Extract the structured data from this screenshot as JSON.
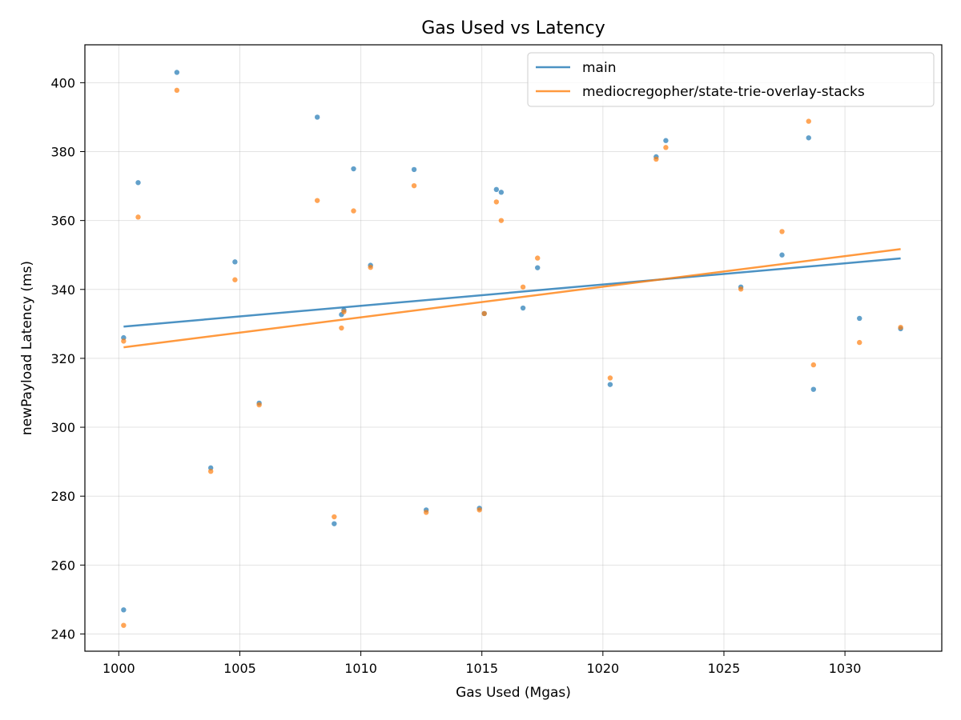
{
  "chart_data": {
    "type": "scatter",
    "title": "Gas Used vs Latency",
    "xlabel": "Gas Used (Mgas)",
    "ylabel": "newPayload Latency (ms)",
    "xlim": [
      998.6,
      1034
    ],
    "ylim": [
      235,
      411
    ],
    "xticks": [
      1000,
      1005,
      1010,
      1015,
      1020,
      1025,
      1030
    ],
    "yticks": [
      240,
      260,
      280,
      300,
      320,
      340,
      360,
      380,
      400
    ],
    "grid": true,
    "legend_position": "top-right",
    "series": [
      {
        "name": "main",
        "color": "#1f77b4",
        "points": [
          [
            1000.2,
            247.0
          ],
          [
            1000.2,
            326.0
          ],
          [
            1000.8,
            371.0
          ],
          [
            1002.4,
            403.0
          ],
          [
            1003.8,
            288.2
          ],
          [
            1004.8,
            348.0
          ],
          [
            1005.8,
            307.0
          ],
          [
            1008.2,
            390.0
          ],
          [
            1008.9,
            272.0
          ],
          [
            1009.2,
            332.7
          ],
          [
            1009.3,
            334.0
          ],
          [
            1009.7,
            375.0
          ],
          [
            1010.4,
            347.0
          ],
          [
            1012.2,
            374.8
          ],
          [
            1012.7,
            276.0
          ],
          [
            1014.9,
            276.5
          ],
          [
            1015.1,
            333.0
          ],
          [
            1015.6,
            369.0
          ],
          [
            1015.8,
            368.2
          ],
          [
            1016.7,
            334.6
          ],
          [
            1017.3,
            346.3
          ],
          [
            1020.3,
            312.4
          ],
          [
            1022.2,
            378.5
          ],
          [
            1022.6,
            383.2
          ],
          [
            1025.7,
            340.7
          ],
          [
            1027.4,
            350.0
          ],
          [
            1028.5,
            384.0
          ],
          [
            1028.7,
            311.0
          ],
          [
            1030.6,
            331.6
          ],
          [
            1032.3,
            328.6
          ]
        ],
        "trend": [
          [
            1000.2,
            329.2
          ],
          [
            1032.3,
            349.0
          ]
        ]
      },
      {
        "name": "mediocregopher/state-trie-overlay-stacks",
        "color": "#ff7f0e",
        "points": [
          [
            1000.2,
            242.5
          ],
          [
            1000.2,
            325.0
          ],
          [
            1000.8,
            361.0
          ],
          [
            1002.4,
            397.8
          ],
          [
            1003.8,
            287.2
          ],
          [
            1004.8,
            342.8
          ],
          [
            1005.8,
            306.5
          ],
          [
            1008.2,
            365.8
          ],
          [
            1008.9,
            274.0
          ],
          [
            1009.2,
            328.8
          ],
          [
            1009.3,
            333.5
          ],
          [
            1009.7,
            362.8
          ],
          [
            1010.4,
            346.4
          ],
          [
            1012.2,
            370.1
          ],
          [
            1012.7,
            275.3
          ],
          [
            1014.9,
            276.0
          ],
          [
            1015.1,
            333.0
          ],
          [
            1015.6,
            365.4
          ],
          [
            1015.8,
            360.0
          ],
          [
            1016.7,
            340.7
          ],
          [
            1017.3,
            349.1
          ],
          [
            1020.3,
            314.3
          ],
          [
            1022.2,
            377.8
          ],
          [
            1022.6,
            381.2
          ],
          [
            1025.7,
            340.1
          ],
          [
            1027.4,
            356.8
          ],
          [
            1028.5,
            388.8
          ],
          [
            1028.7,
            318.1
          ],
          [
            1030.6,
            324.6
          ],
          [
            1032.3,
            329.0
          ]
        ],
        "trend": [
          [
            1000.2,
            323.2
          ],
          [
            1032.3,
            351.7
          ]
        ]
      }
    ]
  }
}
